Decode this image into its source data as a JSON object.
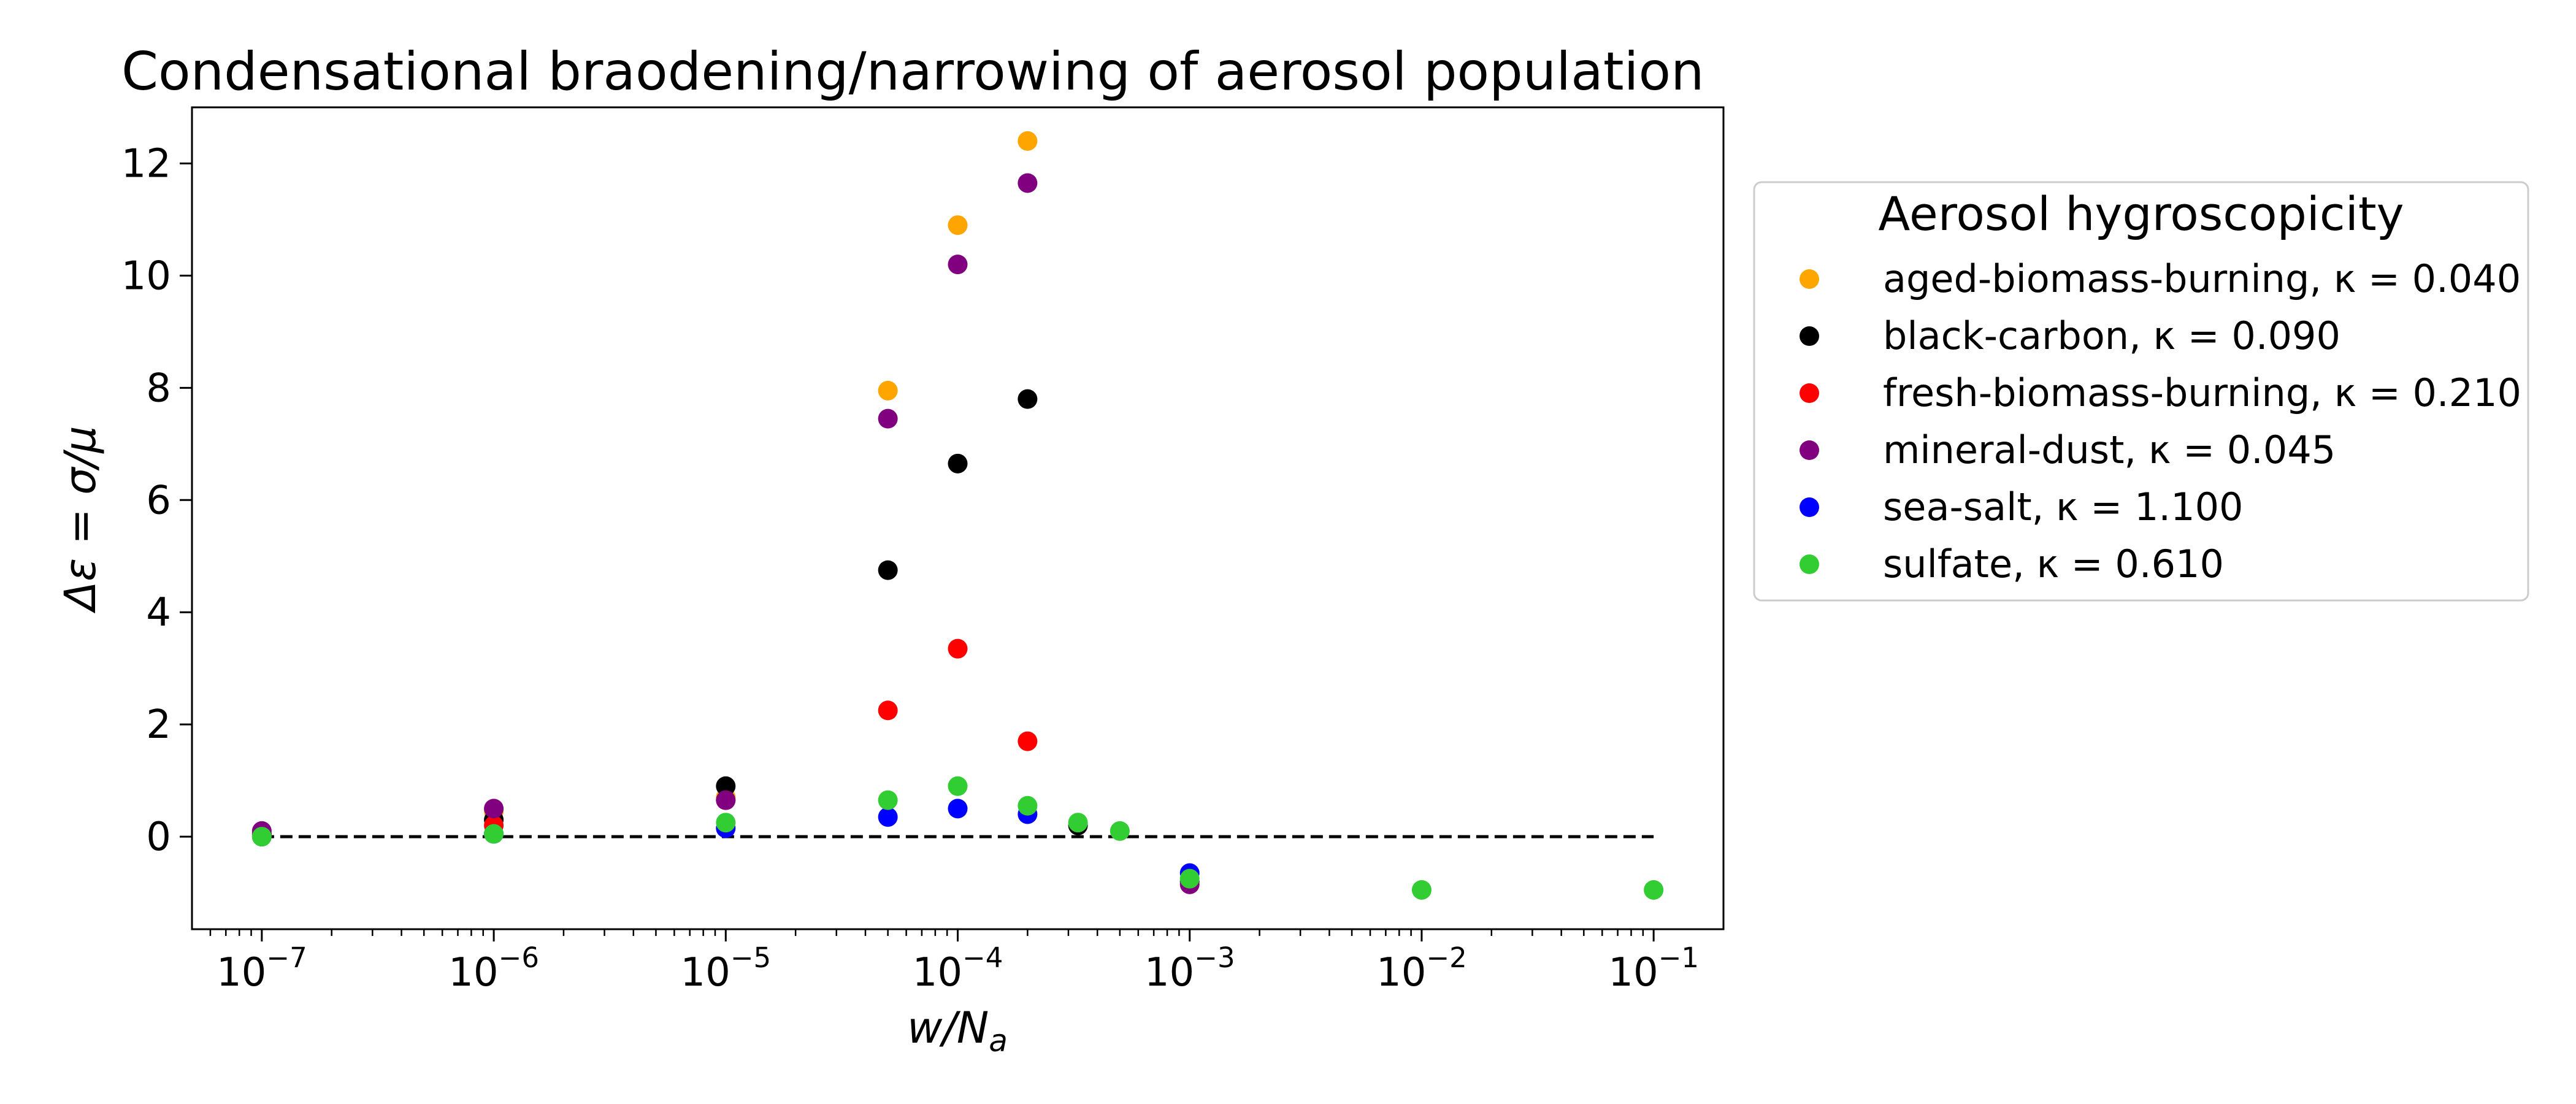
{
  "chart_data": {
    "type": "scatter",
    "title": "Condensational braodening/narrowing of aerosol population",
    "xlabel": "w/N_a",
    "ylabel": "Δε = σ/μ",
    "x_scale": "log",
    "xlim": [
      5e-08,
      0.2
    ],
    "ylim": [
      -1.65,
      13.0
    ],
    "x_ticks": [
      1e-07,
      1e-06,
      1e-05,
      0.0001,
      0.001,
      0.01,
      0.1
    ],
    "x_tick_labels": [
      "10^-7",
      "10^-6",
      "10^-5",
      "10^-4",
      "10^-3",
      "10^-2",
      "10^-1"
    ],
    "y_ticks": [
      0,
      2,
      4,
      6,
      8,
      10,
      12
    ],
    "y_tick_labels": [
      "0",
      "2",
      "4",
      "6",
      "8",
      "10",
      "12"
    ],
    "grid": false,
    "reference_line": {
      "y": 0,
      "x_range": [
        1e-07,
        0.1
      ],
      "style": "dashed",
      "color": "#000000"
    },
    "legend": {
      "title": "Aerosol hygroscopicity",
      "placement": "outside-right-top"
    },
    "series": [
      {
        "name": "aged-biomass-burning, κ = 0.040",
        "color": "#ffa500",
        "x": [
          1e-07,
          1e-06,
          1e-05,
          5e-05,
          0.0001,
          0.0002
        ],
        "y": [
          0.05,
          0.45,
          0.7,
          7.95,
          10.9,
          12.4
        ]
      },
      {
        "name": "black-carbon, κ = 0.090",
        "color": "#000000",
        "x": [
          1e-07,
          1e-06,
          1e-05,
          5e-05,
          0.0001,
          0.0002,
          0.00033,
          0.001
        ],
        "y": [
          0.05,
          0.3,
          0.9,
          4.75,
          6.65,
          7.8,
          0.2,
          -0.8
        ]
      },
      {
        "name": "fresh-biomass-burning, κ = 0.210",
        "color": "#ff0000",
        "x": [
          1e-07,
          1e-06,
          1e-05,
          5e-05,
          0.0001,
          0.0002
        ],
        "y": [
          0.03,
          0.2,
          0.65,
          2.25,
          3.35,
          1.7
        ]
      },
      {
        "name": "mineral-dust, κ = 0.045",
        "color": "#800080",
        "x": [
          1e-07,
          1e-06,
          1e-05,
          5e-05,
          0.0001,
          0.0002,
          0.001
        ],
        "y": [
          0.1,
          0.5,
          0.65,
          7.45,
          10.2,
          11.65,
          -0.85
        ]
      },
      {
        "name": "sea-salt, κ = 1.100",
        "color": "#0000ff",
        "x": [
          1e-07,
          1e-06,
          1e-05,
          5e-05,
          0.0001,
          0.0002,
          0.001
        ],
        "y": [
          0.0,
          0.05,
          0.15,
          0.35,
          0.5,
          0.4,
          -0.65
        ]
      },
      {
        "name": "sulfate, κ = 0.610",
        "color": "#32cd32",
        "x": [
          1e-07,
          1e-06,
          1e-05,
          5e-05,
          0.0001,
          0.0002,
          0.00033,
          0.0005,
          0.001,
          0.01,
          0.1
        ],
        "y": [
          0.0,
          0.05,
          0.25,
          0.65,
          0.9,
          0.55,
          0.25,
          0.1,
          -0.75,
          -0.95,
          -0.95
        ]
      }
    ]
  }
}
